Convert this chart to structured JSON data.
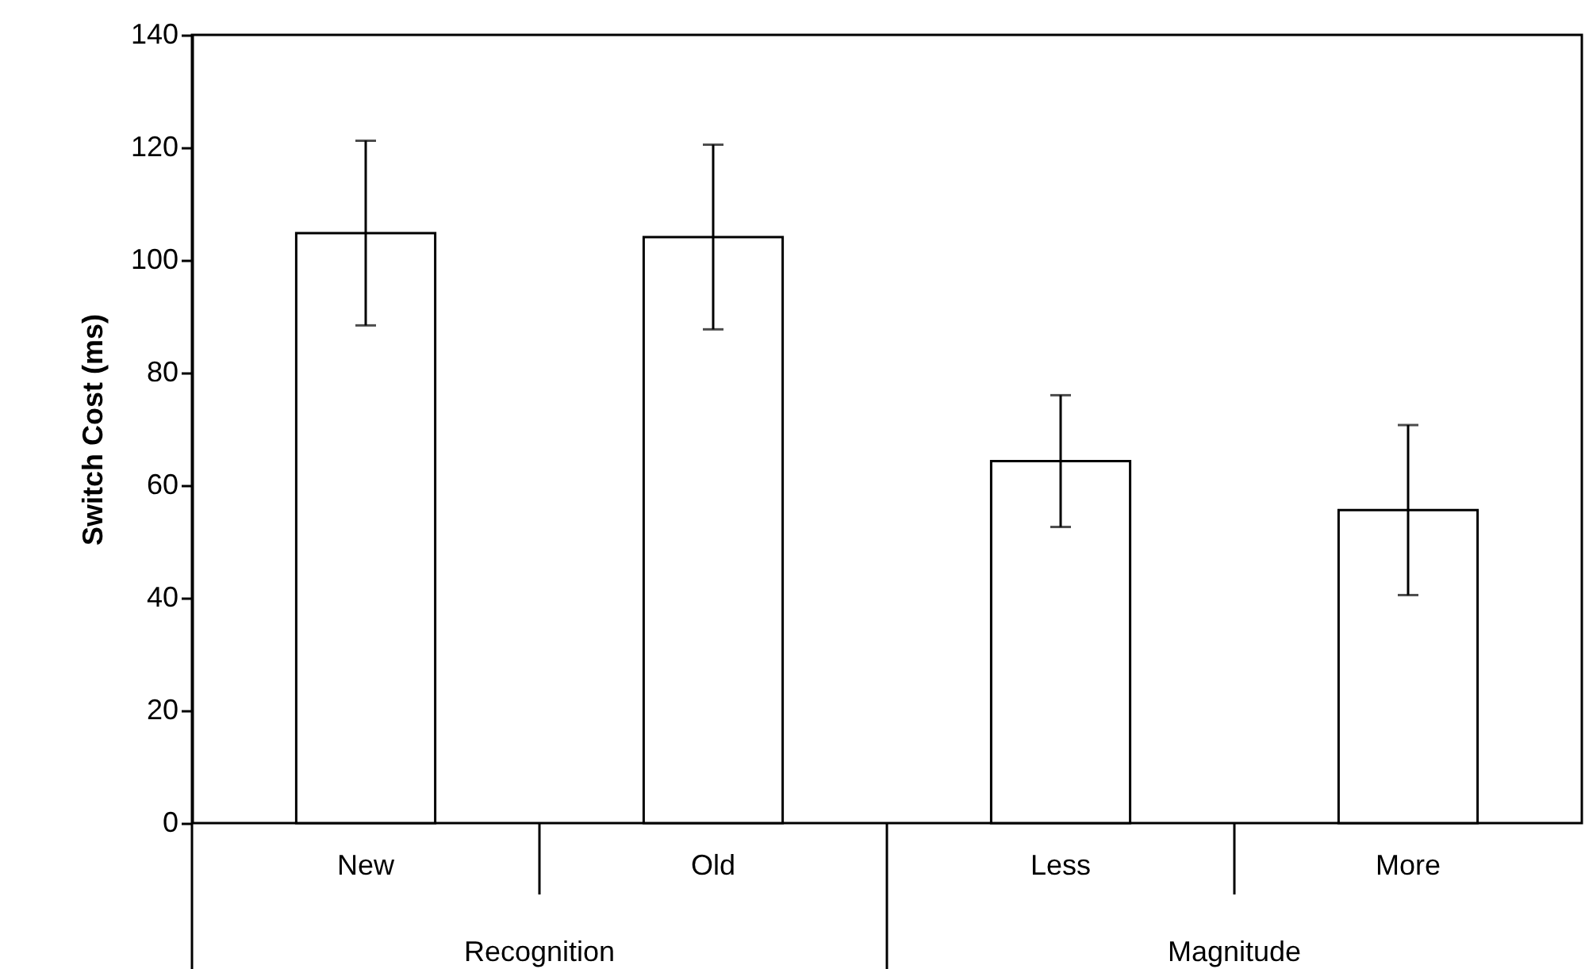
{
  "chart_data": {
    "type": "bar",
    "ylabel": "Switch Cost (ms)",
    "categories": [
      "New",
      "Old",
      "Less",
      "More"
    ],
    "values": [
      104.8,
      104.1,
      64.3,
      55.6
    ],
    "errors": [
      16.4,
      16.4,
      11.7,
      15.1
    ],
    "color": "#ffffff",
    "ylim": [
      0,
      140
    ],
    "yticks": [
      0,
      20,
      40,
      60,
      80,
      100,
      120,
      140
    ],
    "annotations": [
      "Recognition",
      "Magnitude"
    ]
  }
}
